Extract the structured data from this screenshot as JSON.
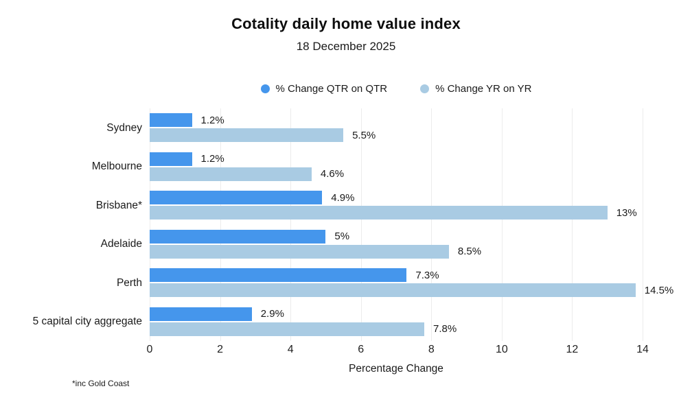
{
  "chart_data": {
    "type": "bar",
    "orientation": "horizontal",
    "title": "Cotality daily home value index",
    "subtitle": "18 December 2025",
    "categories": [
      "Sydney",
      "Melbourne",
      "Brisbane*",
      "Adelaide",
      "Perth",
      "5 capital city aggregate"
    ],
    "series": [
      {
        "name": "% Change QTR on QTR",
        "color": "#4596ec",
        "values": [
          1.2,
          1.2,
          4.9,
          5,
          7.3,
          2.9
        ],
        "value_labels": [
          "1.2%",
          "1.2%",
          "4.9%",
          "5%",
          "7.3%",
          "2.9%"
        ]
      },
      {
        "name": "% Change YR on YR",
        "color": "#a9cbe3",
        "values": [
          5.5,
          4.6,
          13,
          8.5,
          14.5,
          7.8
        ],
        "drawn_values": [
          5.5,
          4.6,
          13,
          8.5,
          13.8,
          7.8
        ],
        "value_labels": [
          "5.5%",
          "4.6%",
          "13%",
          "8.5%",
          "14.5%",
          "7.8%"
        ]
      }
    ],
    "xlabel": "Percentage Change",
    "x_ticks": [
      0,
      2,
      4,
      6,
      8,
      10,
      12,
      14
    ],
    "xlim": [
      0,
      14
    ],
    "grid": "vertical",
    "legend_position": "top",
    "footnote": "*inc Gold Coast",
    "background": "#ffffff",
    "gridline_color": "#ececec"
  }
}
